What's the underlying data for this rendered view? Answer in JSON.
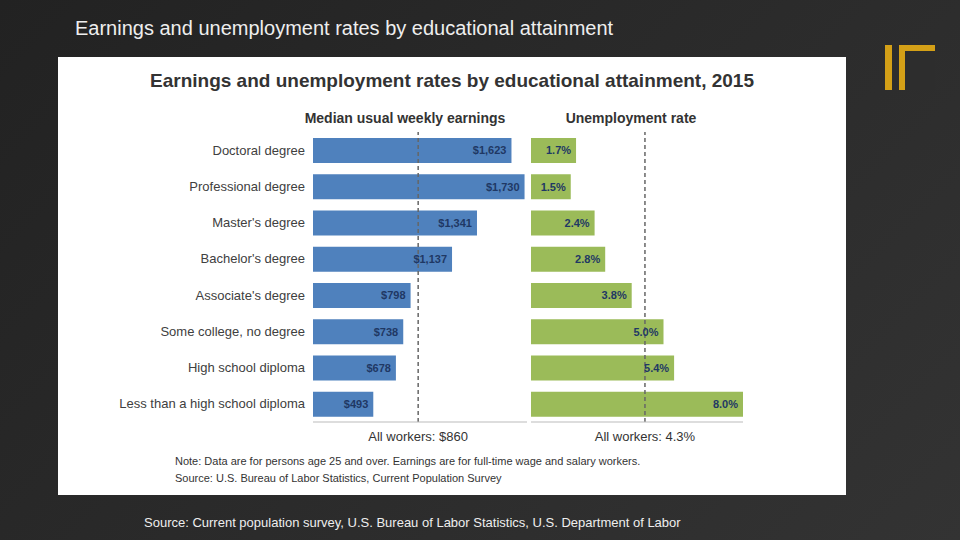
{
  "header": {
    "title": "Earnings and unemployment rates by educational attainment"
  },
  "figure": {
    "title": "Earnings and unemployment rates by educational attainment, 2015",
    "note": "Note: Data are for persons age 25 and over. Earnings are for full-time wage and salary workers.",
    "source": "Source: U.S. Bureau of Labor Statistics, Current Population Survey"
  },
  "footer": {
    "source": "Source: Current population survey, U.S. Bureau of Labor Statistics, U.S. Department of Labor"
  },
  "chart_data": [
    {
      "type": "bar",
      "orientation": "horizontal",
      "title": "Median usual weekly earnings",
      "categories": [
        "Doctoral degree",
        "Professional degree",
        "Master's degree",
        "Bachelor's degree",
        "Associate's degree",
        "Some college, no degree",
        "High school diploma",
        "Less than a high school diploma"
      ],
      "values": [
        1623,
        1730,
        1341,
        1137,
        798,
        738,
        678,
        493
      ],
      "value_labels": [
        "$1,623",
        "$1,730",
        "$1,341",
        "$1,137",
        "$798",
        "$738",
        "$678",
        "$493"
      ],
      "color": "#4f81bd",
      "xlim": [
        0,
        1750
      ],
      "data_labels": true,
      "tick_labels": "y",
      "grid": false,
      "reference_lines": [
        {
          "value": 860,
          "label": "All workers: $860"
        }
      ]
    },
    {
      "type": "bar",
      "orientation": "horizontal",
      "title": "Unemployment rate",
      "categories": [
        "Doctoral degree",
        "Professional degree",
        "Master's degree",
        "Bachelor's degree",
        "Associate's degree",
        "Some college, no degree",
        "High school diploma",
        "Less than a high school diploma"
      ],
      "values": [
        1.7,
        1.5,
        2.4,
        2.8,
        3.8,
        5.0,
        5.4,
        8.0
      ],
      "value_labels": [
        "1.7%",
        "1.5%",
        "2.4%",
        "2.8%",
        "3.8%",
        "5.0%",
        "5.4%",
        "8.0%"
      ],
      "color": "#9bbb59",
      "xlim": [
        0,
        8
      ],
      "data_labels": true,
      "tick_labels": false,
      "grid": false,
      "reference_lines": [
        {
          "value": 4.3,
          "label": "All workers: 4.3%"
        }
      ]
    }
  ]
}
